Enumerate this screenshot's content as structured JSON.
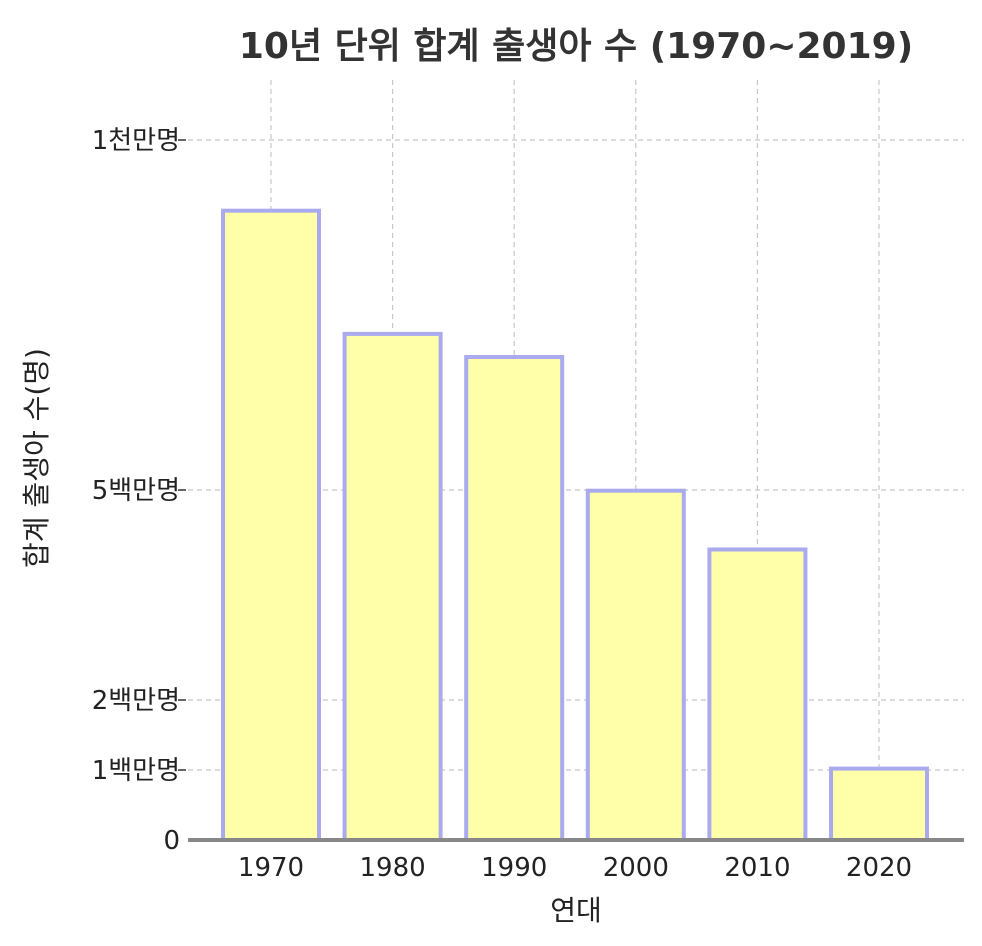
{
  "chart_data": {
    "type": "bar",
    "title": "10년 단위 합계 출생아 수 (1970~2019)",
    "xlabel": "연대",
    "ylabel": "합계 출생아 수(명)",
    "categories": [
      "1970",
      "1980",
      "1990",
      "2000",
      "2010",
      "2020"
    ],
    "values": [
      8990000,
      7230000,
      6900000,
      4990000,
      4150000,
      1020000
    ],
    "ylim": [
      0,
      10500000
    ],
    "yticks": [
      {
        "value": 0,
        "label": "0"
      },
      {
        "value": 1000000,
        "label": "1백만명"
      },
      {
        "value": 2000000,
        "label": "2백만명"
      },
      {
        "value": 5000000,
        "label": "5백만명"
      },
      {
        "value": 10000000,
        "label": "1천만명"
      }
    ],
    "grid": true,
    "colors": {
      "bar_fill": "#ffffaa",
      "bar_edge": "#aaaaee",
      "baseline": "#888888",
      "title": "#333333"
    }
  }
}
